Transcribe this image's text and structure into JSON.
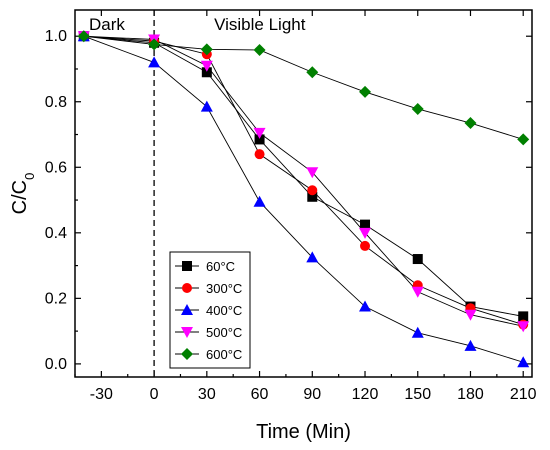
{
  "chart_data": {
    "type": "line",
    "xlabel": "Time (Min)",
    "ylabel": "C/C",
    "ylabel_subscript": "0",
    "x": [
      -40,
      0,
      30,
      60,
      90,
      120,
      150,
      180,
      210
    ],
    "xlim": [
      -45,
      215
    ],
    "ylim": [
      -0.04,
      1.08
    ],
    "x_ticks": [
      -30,
      0,
      30,
      60,
      90,
      120,
      150,
      180,
      210
    ],
    "x_tick_labels": [
      "-30",
      "0",
      "30",
      "60",
      "90",
      "120",
      "150",
      "180",
      "210"
    ],
    "y_ticks": [
      0.0,
      0.2,
      0.4,
      0.6,
      0.8,
      1.0
    ],
    "y_tick_labels": [
      "0.0",
      "0.2",
      "0.4",
      "0.6",
      "0.8",
      "1.0"
    ],
    "grid": false,
    "legend_position": "bottom-left",
    "divider": {
      "x": 0,
      "style": "dashed"
    },
    "regions": [
      {
        "label": "Dark",
        "side": "left"
      },
      {
        "label": "Visible Light",
        "side": "right"
      }
    ],
    "series": [
      {
        "name": "60",
        "unit": "°C",
        "marker": "square",
        "color": "#000000",
        "values": [
          1.0,
          0.98,
          0.89,
          0.685,
          0.51,
          0.425,
          0.32,
          0.175,
          0.145
        ]
      },
      {
        "name": "300",
        "unit": "°C",
        "marker": "circle",
        "color": "#ff0000",
        "values": [
          1.0,
          0.985,
          0.945,
          0.64,
          0.53,
          0.36,
          0.24,
          0.17,
          0.12
        ]
      },
      {
        "name": "400",
        "unit": "°C",
        "marker": "triangle-up",
        "color": "#0000ff",
        "values": [
          1.0,
          0.92,
          0.785,
          0.495,
          0.325,
          0.175,
          0.095,
          0.055,
          0.005
        ]
      },
      {
        "name": "500",
        "unit": "°C",
        "marker": "triangle-down",
        "color": "#ff00ff",
        "values": [
          1.0,
          0.99,
          0.91,
          0.705,
          0.585,
          0.4,
          0.22,
          0.15,
          0.115
        ]
      },
      {
        "name": "600",
        "unit": "°C",
        "marker": "diamond",
        "color": "#008000",
        "values": [
          1.0,
          0.975,
          0.96,
          0.958,
          0.89,
          0.83,
          0.778,
          0.735,
          0.685
        ]
      }
    ]
  }
}
